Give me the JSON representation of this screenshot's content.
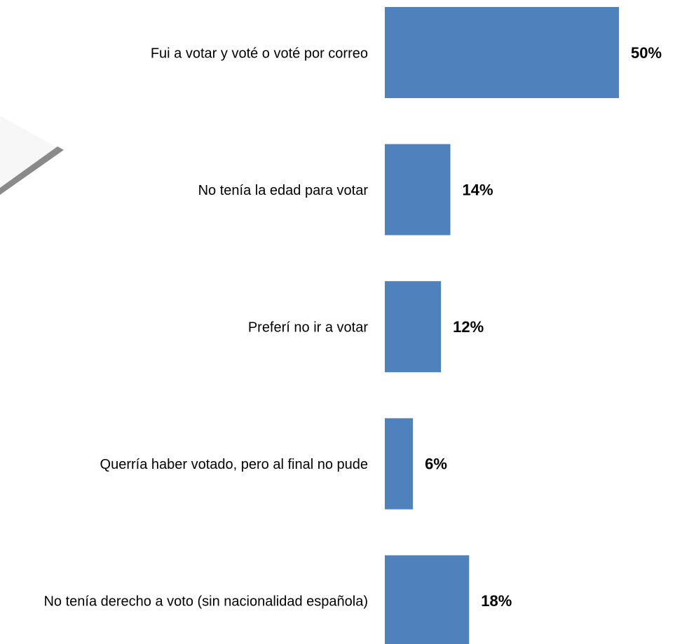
{
  "chart_data": {
    "type": "bar",
    "orientation": "horizontal",
    "categories": [
      "Fui a votar y voté o voté por correo",
      "No tenía la edad para votar",
      "Preferí no ir a votar",
      "Querría haber votado, pero al final no pude",
      "No tenía derecho a voto (sin nacionalidad española)"
    ],
    "values": [
      50,
      14,
      12,
      6,
      18
    ],
    "value_labels": [
      "50%",
      "14%",
      "12%",
      "6%",
      "18%"
    ],
    "color": "#4f81bd"
  }
}
